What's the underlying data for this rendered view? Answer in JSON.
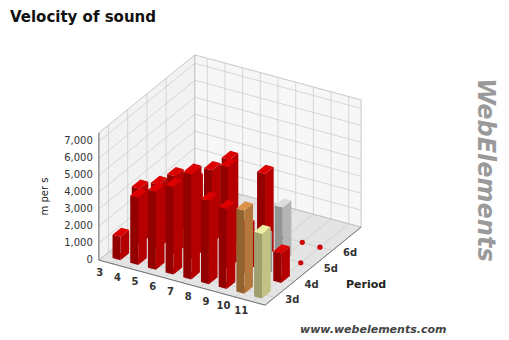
{
  "chart_data": {
    "type": "bar3d",
    "title": "Velocity of sound",
    "z_label": "m per s",
    "y_label": "Period",
    "categories": [
      "3",
      "4",
      "5",
      "6",
      "7",
      "8",
      "9",
      "10",
      "11"
    ],
    "series": [
      {
        "name": "3d",
        "values": [
          1380,
          3980,
          4600,
          5170,
          6190,
          4910,
          4720,
          4910,
          3810
        ],
        "colors": [
          "#cc0000",
          "#cc0000",
          "#cc0000",
          "#cc0000",
          "#cc0000",
          "#cc0000",
          "#cc0000",
          "#cc8844",
          "#dddd99"
        ]
      },
      {
        "name": "4d",
        "values": [
          3300,
          1480,
          4600,
          5090,
          0,
          5980,
          2700,
          2360,
          1740
        ],
        "colors": [
          "#cc0000",
          "#cc0000",
          "#cc0000",
          "#cc0000",
          "#cc0000",
          "#cc0000",
          "#cc0000",
          "#aaaaaa",
          "#cc0000"
        ]
      },
      {
        "name": "5d",
        "values": [
          2600,
          3050,
          3430,
          4310,
          5200,
          0,
          4940,
          3240,
          0
        ],
        "colors": [
          "#cc0000",
          "#cc0000",
          "#cc0000",
          "#cc0000",
          "#cc0000",
          "#cc0000",
          "#cc0000",
          "#cccccc",
          "#aaaaaa"
        ]
      },
      {
        "name": "6d",
        "values": [
          0,
          0,
          0,
          0,
          0,
          0,
          0,
          0,
          0
        ]
      }
    ],
    "color": "#cc0000",
    "zlim": [
      0,
      7500
    ],
    "zticks": [
      0,
      {
        "value": 1000,
        "label": "1,000"
      },
      {
        "value": 2000,
        "label": "2,000"
      },
      {
        "value": 3000,
        "label": "3,000"
      },
      {
        "value": 4000,
        "label": "4,000"
      },
      {
        "value": 5000,
        "label": "5,000"
      },
      {
        "value": 6000,
        "label": "6,000"
      },
      {
        "value": 7000,
        "label": "7,000"
      }
    ],
    "grid": true,
    "annotations": [
      "www.webelements.com",
      "WebElements"
    ]
  }
}
